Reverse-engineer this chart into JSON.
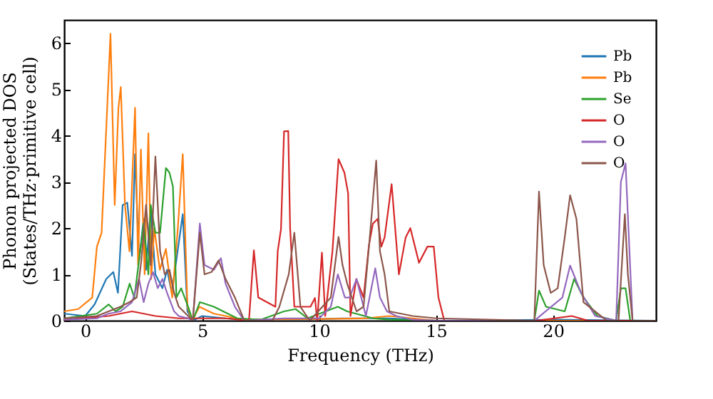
{
  "chart_data": {
    "type": "line",
    "xlabel": "Frequency (THz)",
    "ylabel": "Phonon projected DOS\n(States/THz·primitive cell)",
    "xlim": [
      -0.9,
      24.4
    ],
    "ylim": [
      0,
      6.5
    ],
    "xticks": [
      0,
      5,
      10,
      15,
      20
    ],
    "yticks": [
      0,
      1,
      2,
      3,
      4,
      5,
      6
    ],
    "grid": false,
    "legend": "top right",
    "series": [
      {
        "name": "Pb",
        "color": "#1f77b4",
        "x": [
          -0.9,
          0,
          0.4,
          0.9,
          1.2,
          1.4,
          1.6,
          1.8,
          2.0,
          2.13,
          2.3,
          2.5,
          2.6,
          2.8,
          3.0,
          3.3,
          3.5,
          3.7,
          4.17,
          4.37,
          4.6,
          5,
          6,
          7,
          9,
          11,
          13,
          15,
          20,
          24.4
        ],
        "values": [
          0.15,
          0.1,
          0.35,
          0.9,
          1.05,
          0.6,
          2.5,
          2.55,
          1.4,
          3.6,
          1.3,
          2.2,
          1.1,
          2.4,
          1.0,
          0.7,
          1.1,
          0.6,
          2.3,
          0.2,
          0,
          0.1,
          0.05,
          0.02,
          0.02,
          0.05,
          0.05,
          0,
          0.02,
          0
        ]
      },
      {
        "name": "Pb",
        "color": "#ff7f0e",
        "x": [
          -0.9,
          -0.3,
          0.3,
          0.5,
          0.7,
          1.08,
          1.26,
          1.42,
          1.52,
          1.7,
          1.89,
          2.13,
          2.26,
          2.38,
          2.54,
          2.7,
          2.82,
          2.95,
          3.19,
          3.45,
          3.72,
          3.96,
          4.17,
          4.37,
          4.57,
          4.88,
          5.5,
          6.5,
          7,
          9,
          12,
          13,
          14,
          15,
          24.4
        ],
        "values": [
          0.2,
          0.25,
          0.5,
          1.6,
          1.9,
          6.2,
          2.5,
          4.6,
          5.05,
          2.5,
          1.5,
          4.6,
          1.2,
          3.7,
          1.0,
          4.05,
          0.9,
          2.0,
          1.1,
          1.55,
          0.5,
          2.0,
          3.6,
          0.3,
          0,
          0.3,
          0.15,
          0.05,
          0.02,
          0.03,
          0.05,
          0.1,
          0.05,
          0,
          0
        ]
      },
      {
        "name": "Se",
        "color": "#2ca02c",
        "x": [
          -0.9,
          0.5,
          1.0,
          1.3,
          1.6,
          1.9,
          2.1,
          2.5,
          2.7,
          2.8,
          3.0,
          3.2,
          3.45,
          3.6,
          3.75,
          3.9,
          4.1,
          4.4,
          4.6,
          4.9,
          5.5,
          6.5,
          7.5,
          8.5,
          9,
          9.5,
          10.8,
          11.2,
          12.3,
          13,
          15,
          19.2,
          19.4,
          19.7,
          20.5,
          20.9,
          21.3,
          21.9,
          22.7,
          22.9,
          23.1,
          23.3,
          24.4
        ],
        "values": [
          0.05,
          0.15,
          0.35,
          0.2,
          0.3,
          0.8,
          0.5,
          2.1,
          1.0,
          2.5,
          1.9,
          1.9,
          3.3,
          3.2,
          2.9,
          0.5,
          0.7,
          0.3,
          0,
          0.4,
          0.3,
          0.05,
          0.02,
          0.2,
          0.25,
          0.05,
          0.3,
          0.2,
          0.05,
          0.02,
          0,
          0,
          0.65,
          0.3,
          0.2,
          0.9,
          0.5,
          0.1,
          0,
          0.7,
          0.7,
          0,
          0
        ]
      },
      {
        "name": "O",
        "color": "#d62728",
        "x": [
          -0.9,
          1,
          2,
          3,
          4,
          5,
          6,
          7.0,
          7.21,
          7.4,
          8.13,
          8.23,
          8.37,
          8.5,
          8.68,
          8.76,
          8.94,
          9.63,
          9.82,
          9.92,
          10.12,
          10.26,
          10.57,
          10.83,
          11.08,
          11.24,
          11.34,
          11.59,
          11.9,
          12.13,
          12.3,
          12.5,
          12.66,
          12.8,
          13.1,
          13.41,
          13.7,
          13.9,
          14.27,
          14.63,
          14.9,
          15.1,
          15.35,
          19.3,
          20.8,
          21.5,
          24.4
        ],
        "values": [
          0.02,
          0.1,
          0.2,
          0.1,
          0.05,
          0.05,
          0.05,
          0,
          1.52,
          0.5,
          0.3,
          1.5,
          1.98,
          4.09,
          4.1,
          2.0,
          0.3,
          0.3,
          0.49,
          0,
          1.47,
          0.1,
          1.5,
          3.49,
          3.2,
          2.75,
          0.1,
          0.9,
          0.5,
          1.63,
          2.1,
          2.2,
          1.6,
          1.8,
          2.95,
          1.0,
          1.8,
          2.0,
          1.25,
          1.6,
          1.6,
          0.5,
          0,
          0,
          0.1,
          0,
          0
        ]
      },
      {
        "name": "O",
        "color": "#9467bd",
        "x": [
          -0.9,
          0.5,
          1.0,
          1.5,
          2.0,
          2.3,
          2.5,
          2.7,
          2.9,
          3.1,
          3.3,
          3.5,
          3.8,
          4.0,
          4.4,
          4.6,
          4.9,
          5.1,
          5.5,
          5.8,
          6.0,
          6.4,
          6.8,
          8.5,
          10,
          10.5,
          10.8,
          11.1,
          11.3,
          11.6,
          12.0,
          12.4,
          12.6,
          12.9,
          13.3,
          14,
          15,
          19.2,
          20.4,
          20.73,
          21.2,
          21.8,
          22.7,
          22.9,
          23.1,
          23.4,
          24.4
        ],
        "values": [
          0.02,
          0.05,
          0.15,
          0.2,
          0.4,
          0.9,
          0.4,
          0.8,
          1.05,
          0.7,
          0.9,
          0.6,
          0.2,
          0.1,
          0.05,
          0,
          2.1,
          1.2,
          1.1,
          1.35,
          0.8,
          0.3,
          0,
          0.05,
          0.05,
          0.3,
          1.0,
          0.5,
          0.5,
          0.9,
          0.1,
          1.13,
          0.5,
          0.2,
          0.1,
          0.02,
          0,
          0,
          0.5,
          1.19,
          0.6,
          0.1,
          0,
          3.0,
          3.4,
          0,
          0
        ]
      },
      {
        "name": "O",
        "color": "#8c564b",
        "x": [
          -0.9,
          0.5,
          1.0,
          1.5,
          1.9,
          2.2,
          2.4,
          2.6,
          2.8,
          3.0,
          3.2,
          3.4,
          3.6,
          3.8,
          4.0,
          4.6,
          4.9,
          5.1,
          5.4,
          5.7,
          6.0,
          6.4,
          6.8,
          8.0,
          8.3,
          8.7,
          8.94,
          9.2,
          9.6,
          10.5,
          10.83,
          11.0,
          11.2,
          11.6,
          11.9,
          12.2,
          12.44,
          12.6,
          12.8,
          13.0,
          14,
          15,
          19.2,
          19.4,
          19.6,
          19.9,
          20.2,
          20.5,
          20.73,
          21.0,
          21.3,
          21.8,
          22.3,
          22.8,
          23.07,
          23.2,
          23.4,
          24.4
        ],
        "values": [
          0.05,
          0.1,
          0.2,
          0.3,
          0.4,
          0.5,
          1.3,
          2.5,
          1.2,
          3.55,
          1.5,
          1.0,
          1.1,
          0.6,
          0.3,
          0,
          1.9,
          1.0,
          1.05,
          1.3,
          0.9,
          0.5,
          0,
          0,
          0.3,
          1.0,
          1.9,
          0.3,
          0,
          0.5,
          1.81,
          1.2,
          0.8,
          0.2,
          0.3,
          2.0,
          3.46,
          1.5,
          1.0,
          0.2,
          0.1,
          0.05,
          0,
          2.79,
          1.2,
          0.6,
          0.7,
          1.8,
          2.71,
          2.2,
          0.4,
          0.2,
          0,
          0,
          2.3,
          1.0,
          0,
          0
        ]
      }
    ]
  }
}
